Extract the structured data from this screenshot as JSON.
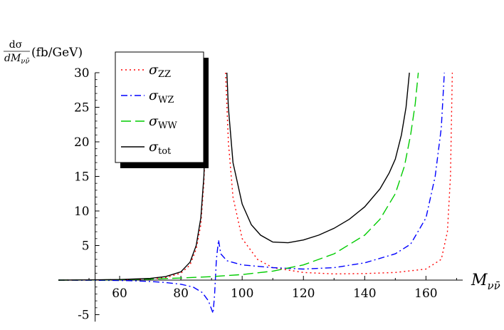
{
  "chart_data": {
    "type": "line",
    "title": "",
    "ylabel": {
      "numerator": "dσ",
      "denominator": "dM",
      "denominator_sub": "νν̄",
      "unit": "(fb/GeV)"
    },
    "xlabel": {
      "main": "M",
      "sub": "νν̄"
    },
    "xlim": [
      40,
      172
    ],
    "ylim": [
      -6,
      30
    ],
    "xticks": [
      60,
      80,
      100,
      120,
      140,
      160
    ],
    "yticks": [
      -5,
      5,
      10,
      15,
      20,
      25,
      30
    ],
    "grid": false,
    "legend_position": "top-left",
    "series": [
      {
        "name": "ZZ",
        "symbol": "σ",
        "color": "#ff0000",
        "dash": "2,4",
        "points": [
          [
            40,
            0
          ],
          [
            50,
            0.02
          ],
          [
            60,
            0.05
          ],
          [
            70,
            0.15
          ],
          [
            75,
            0.35
          ],
          [
            80,
            1.0
          ],
          [
            83,
            2.2
          ],
          [
            85,
            4.5
          ],
          [
            86.5,
            8
          ],
          [
            87.5,
            14
          ],
          [
            88.2,
            22
          ],
          [
            88.6,
            30
          ],
          [
            null,
            null
          ],
          [
            94.6,
            30
          ],
          [
            95.5,
            20
          ],
          [
            97,
            12
          ],
          [
            100,
            6
          ],
          [
            105,
            3
          ],
          [
            110,
            1.8
          ],
          [
            120,
            1.1
          ],
          [
            130,
            0.9
          ],
          [
            140,
            0.95
          ],
          [
            150,
            1.1
          ],
          [
            160,
            1.6
          ],
          [
            165,
            3
          ],
          [
            167,
            7
          ],
          [
            168,
            15
          ],
          [
            168.6,
            30
          ]
        ]
      },
      {
        "name": "WZ",
        "symbol": "σ",
        "color": "#0000ff",
        "dash": "9,4,2,4",
        "points": [
          [
            40,
            0
          ],
          [
            50,
            -0.02
          ],
          [
            60,
            -0.05
          ],
          [
            65,
            -0.1
          ],
          [
            70,
            -0.2
          ],
          [
            75,
            -0.35
          ],
          [
            80,
            -0.6
          ],
          [
            84,
            -1.0
          ],
          [
            87,
            -1.8
          ],
          [
            89,
            -3
          ],
          [
            90.5,
            -4.8
          ],
          [
            91,
            -2
          ],
          [
            91.6,
            3
          ],
          [
            92.3,
            5.8
          ],
          [
            93,
            3.8
          ],
          [
            95,
            2.8
          ],
          [
            100,
            2.2
          ],
          [
            110,
            1.8
          ],
          [
            120,
            1.6
          ],
          [
            130,
            1.8
          ],
          [
            140,
            2.5
          ],
          [
            150,
            3.8
          ],
          [
            155,
            5.2
          ],
          [
            160,
            9
          ],
          [
            163,
            15
          ],
          [
            165,
            22
          ],
          [
            166,
            30
          ]
        ]
      },
      {
        "name": "WW",
        "symbol": "σ",
        "color": "#00cc00",
        "dash": "14,6",
        "points": [
          [
            40,
            0
          ],
          [
            50,
            0.02
          ],
          [
            60,
            0.06
          ],
          [
            70,
            0.15
          ],
          [
            80,
            0.3
          ],
          [
            90,
            0.5
          ],
          [
            100,
            0.8
          ],
          [
            110,
            1.3
          ],
          [
            120,
            2.2
          ],
          [
            130,
            3.8
          ],
          [
            140,
            6.5
          ],
          [
            145,
            8.8
          ],
          [
            150,
            12.5
          ],
          [
            153,
            16.5
          ],
          [
            155,
            21
          ],
          [
            156.5,
            25.5
          ],
          [
            157.5,
            30
          ]
        ]
      },
      {
        "name": "tot",
        "symbol": "σ",
        "color": "#000000",
        "dash": "",
        "points": [
          [
            40,
            0
          ],
          [
            50,
            0.03
          ],
          [
            60,
            0.08
          ],
          [
            70,
            0.25
          ],
          [
            75,
            0.5
          ],
          [
            80,
            1.2
          ],
          [
            83,
            2.6
          ],
          [
            85,
            5
          ],
          [
            86.5,
            9
          ],
          [
            87.5,
            15
          ],
          [
            88,
            21
          ],
          [
            88.5,
            30
          ],
          [
            null,
            null
          ],
          [
            95,
            30
          ],
          [
            95.5,
            25
          ],
          [
            97,
            17
          ],
          [
            100,
            11
          ],
          [
            103,
            8
          ],
          [
            106,
            6.5
          ],
          [
            110,
            5.5
          ],
          [
            115,
            5.4
          ],
          [
            120,
            5.8
          ],
          [
            125,
            6.5
          ],
          [
            130,
            7.5
          ],
          [
            135,
            8.8
          ],
          [
            140,
            10.6
          ],
          [
            145,
            13.2
          ],
          [
            148,
            15.5
          ],
          [
            150,
            17.5
          ],
          [
            152,
            21
          ],
          [
            153.5,
            25
          ],
          [
            154.6,
            30
          ]
        ]
      }
    ]
  }
}
